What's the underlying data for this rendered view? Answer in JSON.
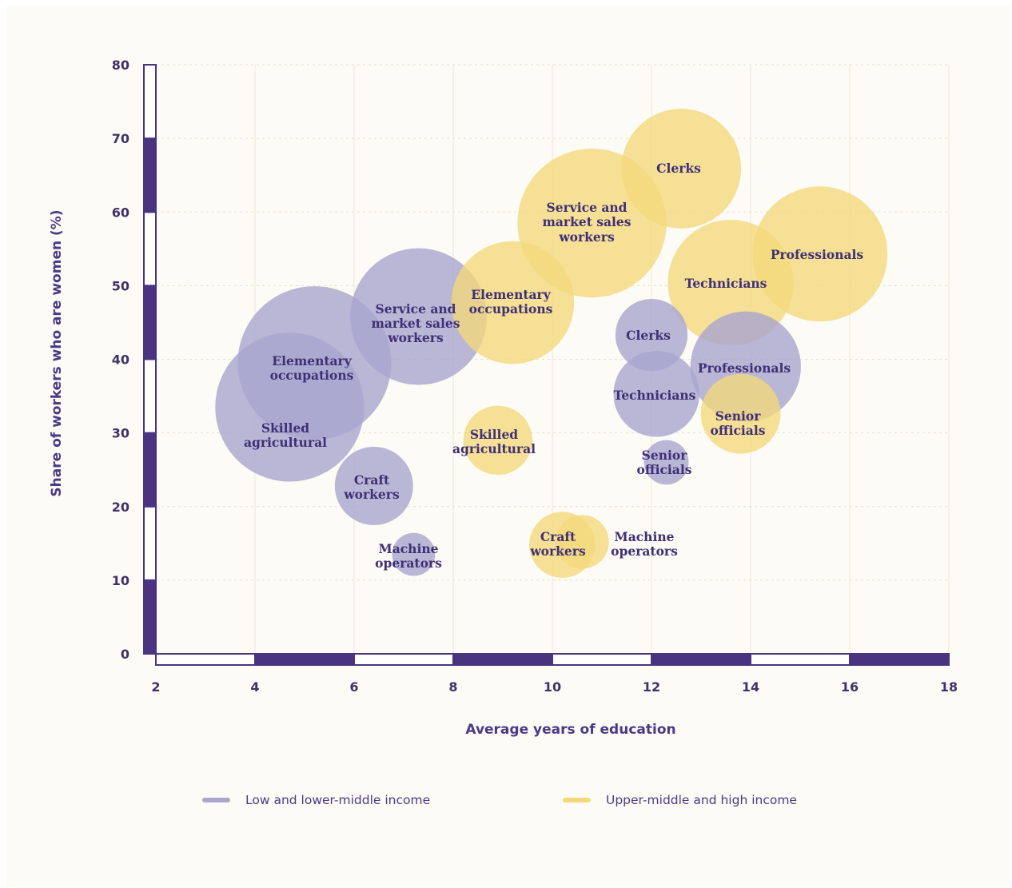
{
  "chart_data": {
    "type": "scatter",
    "xlabel": "Average years of education",
    "ylabel": "Share of workers who are women (%)",
    "xlim": [
      2,
      18
    ],
    "ylim": [
      0,
      80
    ],
    "x_ticks": [
      "2",
      "4",
      "6",
      "8",
      "10",
      "12",
      "14",
      "16",
      "18"
    ],
    "y_ticks": [
      "0",
      "10",
      "20",
      "30",
      "40",
      "50",
      "60",
      "70",
      "80"
    ],
    "grid": true,
    "legend_position": "bottom",
    "series": [
      {
        "name": "Low and lower-middle income",
        "color": "#a9a6d0",
        "points": [
          {
            "label": "Elementary occupations",
            "x": 5.2,
            "y": 39.5,
            "size": 1.0
          },
          {
            "label": "Skilled agricultural",
            "x": 4.7,
            "y": 33.5,
            "size": 0.97
          },
          {
            "label": "Service and market sales workers",
            "x": 7.3,
            "y": 45.8,
            "size": 0.89
          },
          {
            "label": "Craft workers",
            "x": 6.4,
            "y": 22.8,
            "size": 0.51
          },
          {
            "label": "Machine operators",
            "x": 7.2,
            "y": 13.5,
            "size": 0.28
          },
          {
            "label": "Clerks",
            "x": 12.0,
            "y": 43.3,
            "size": 0.47
          },
          {
            "label": "Technicians",
            "x": 12.1,
            "y": 35.3,
            "size": 0.56
          },
          {
            "label": "Professionals",
            "x": 13.9,
            "y": 39.0,
            "size": 0.72
          },
          {
            "label": "Senior officials",
            "x": 12.3,
            "y": 26.0,
            "size": 0.29
          }
        ]
      },
      {
        "name": "Upper-middle and high income",
        "color": "#f3d97b",
        "points": [
          {
            "label": "Clerks",
            "x": 12.6,
            "y": 65.9,
            "size": 0.78
          },
          {
            "label": "Service and market sales workers",
            "x": 10.8,
            "y": 58.5,
            "size": 0.97
          },
          {
            "label": "Professionals",
            "x": 15.4,
            "y": 54.3,
            "size": 0.88
          },
          {
            "label": "Technicians",
            "x": 13.6,
            "y": 50.4,
            "size": 0.82
          },
          {
            "label": "Elementary occupations",
            "x": 9.2,
            "y": 47.7,
            "size": 0.8
          },
          {
            "label": "Senior officials",
            "x": 13.8,
            "y": 32.6,
            "size": 0.52
          },
          {
            "label": "Skilled agricultural",
            "x": 8.9,
            "y": 29.0,
            "size": 0.45
          },
          {
            "label": "Craft workers",
            "x": 10.2,
            "y": 14.8,
            "size": 0.43
          },
          {
            "label": "Machine operators",
            "x": 10.6,
            "y": 15.2,
            "size": 0.35
          }
        ]
      }
    ]
  },
  "bubble_labels": {
    "lo_elementary_1": "Elementary",
    "lo_elementary_2": "occupations",
    "lo_skilled_1": "Skilled",
    "lo_skilled_2": "agricultural",
    "lo_service_1": "Service and",
    "lo_service_2": "market sales",
    "lo_service_3": "workers",
    "lo_craft_1": "Craft",
    "lo_craft_2": "workers",
    "lo_machine_1": "Machine",
    "lo_machine_2": "operators",
    "lo_clerks": "Clerks",
    "lo_technicians": "Technicians",
    "lo_professionals": "Professionals",
    "lo_senior_1": "Senior",
    "lo_senior_2": "officials",
    "hi_clerks": "Clerks",
    "hi_service_1": "Service and",
    "hi_service_2": "market sales",
    "hi_service_3": "workers",
    "hi_professionals": "Professionals",
    "hi_technicians": "Technicians",
    "hi_elementary_1": "Elementary",
    "hi_elementary_2": "occupations",
    "hi_senior_1": "Senior",
    "hi_senior_2": "officials",
    "hi_skilled_1": "Skilled",
    "hi_skilled_2": "agricultural",
    "hi_craft_1": "Craft",
    "hi_craft_2": "workers",
    "hi_machine_1": "Machine",
    "hi_machine_2": "operators"
  },
  "legend": {
    "low": "Low and lower-middle income",
    "high": "Upper-middle and high income"
  }
}
